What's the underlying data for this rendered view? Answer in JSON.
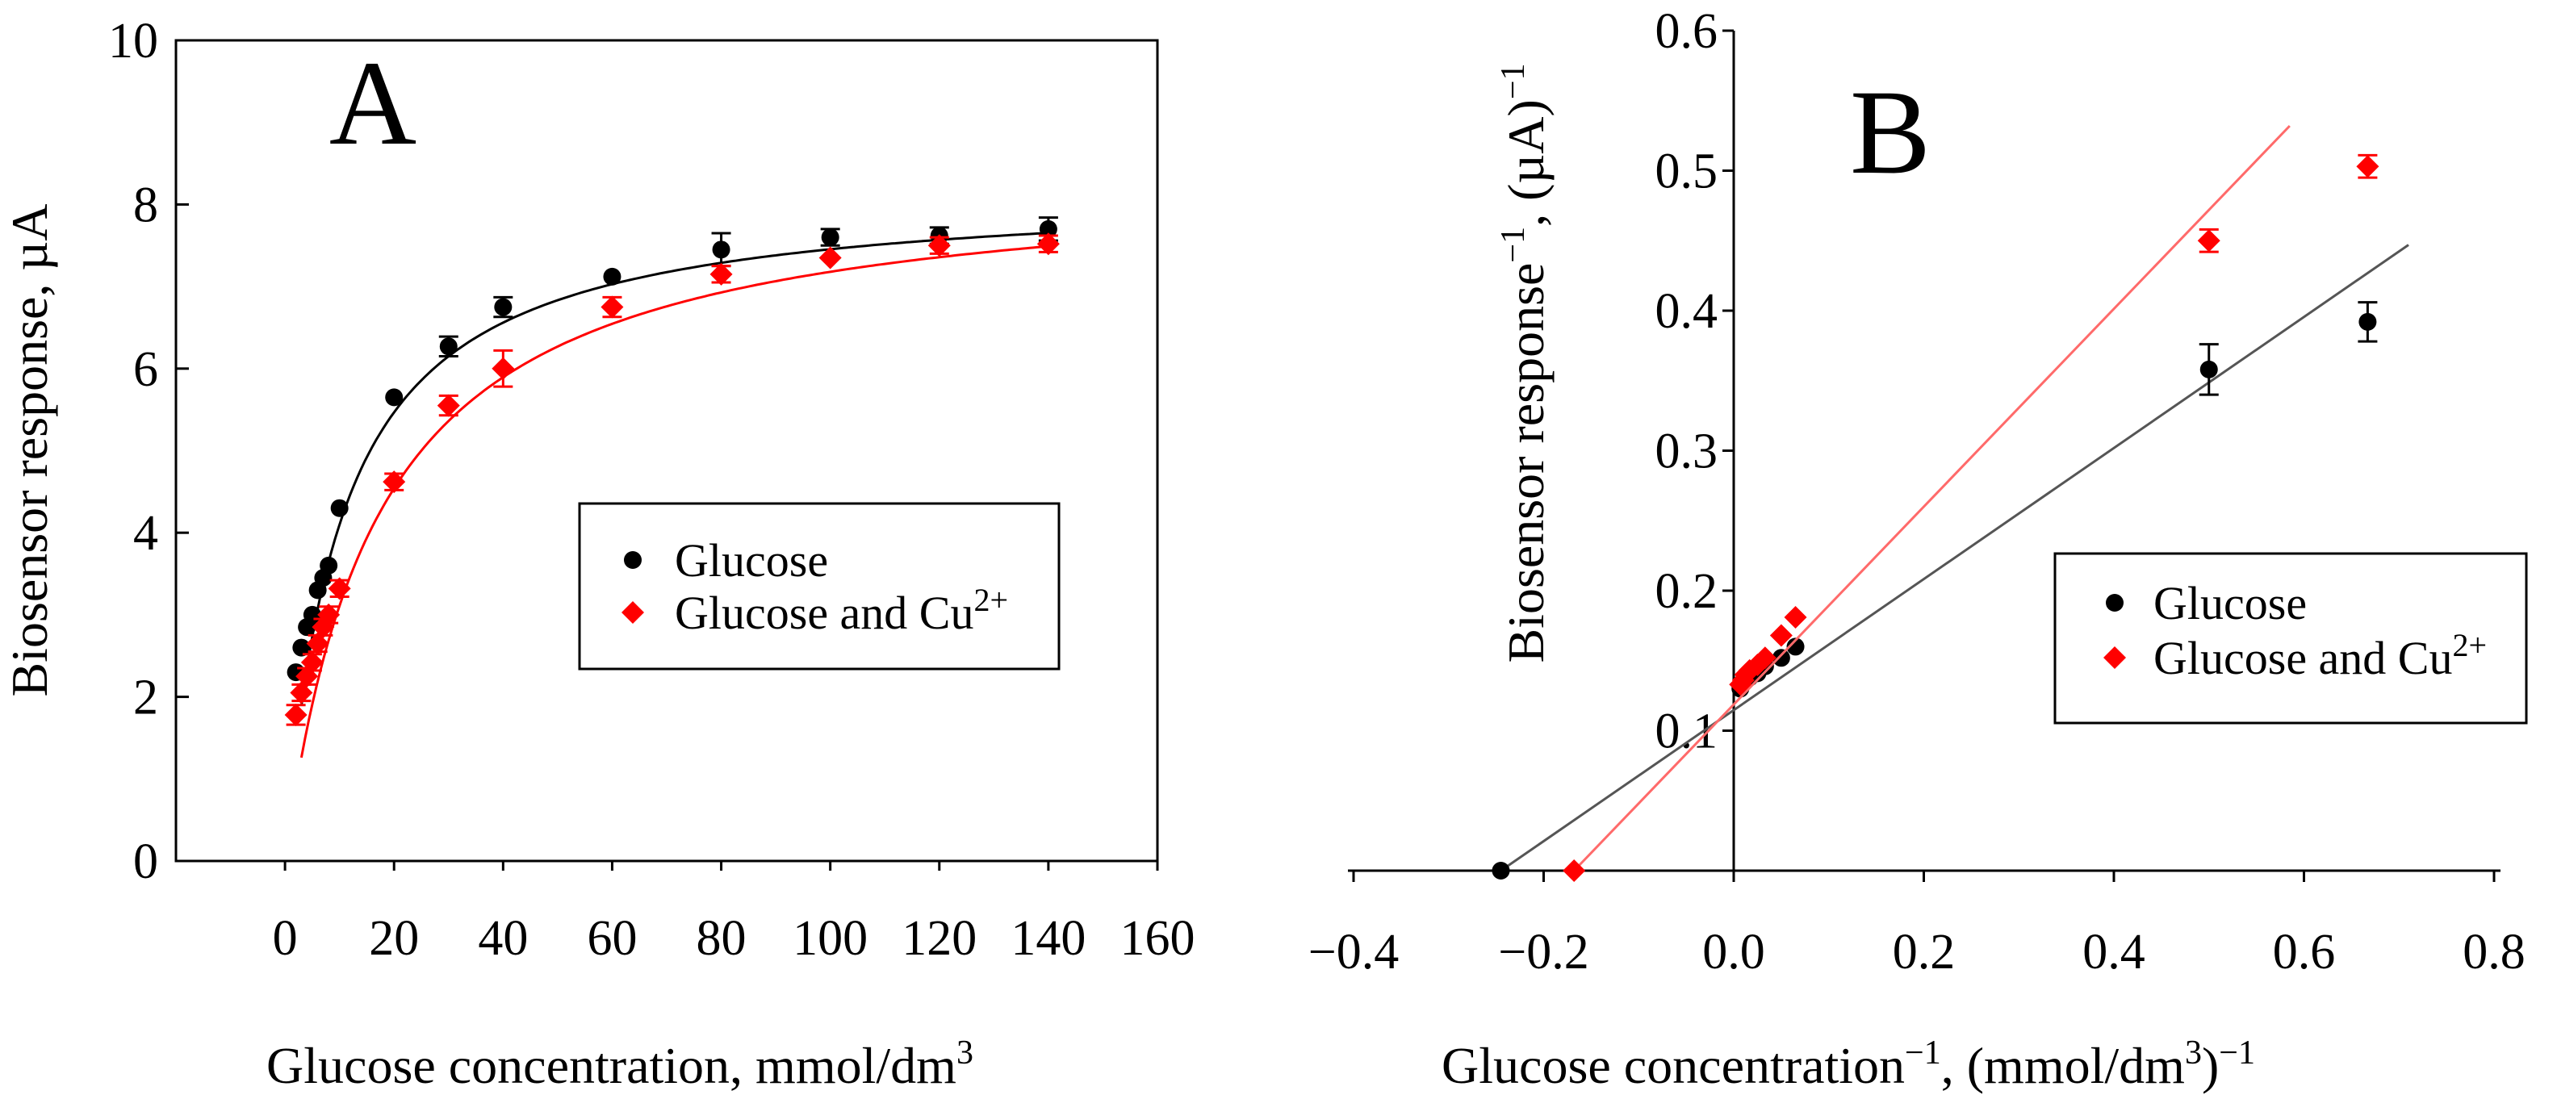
{
  "chart_data": [
    {
      "panel_label": "A",
      "type": "scatter",
      "xlabel": "Glucose concentration, mmol/dm",
      "xlabel_sup": "3",
      "ylabel": "Biosensor response, µA",
      "xlim": [
        -20,
        160
      ],
      "ylim": [
        0,
        10
      ],
      "xticks": [
        0,
        20,
        40,
        60,
        80,
        100,
        120,
        140,
        160
      ],
      "xtick_labels": [
        "0",
        "20",
        "40",
        "60",
        "80",
        "100",
        "120",
        "140",
        "160"
      ],
      "yticks": [
        0,
        2,
        4,
        6,
        8,
        10
      ],
      "ytick_labels": [
        "0",
        "2",
        "4",
        "6",
        "8",
        "10"
      ],
      "legend": {
        "position": "center-right",
        "entries": [
          {
            "label": "Glucose",
            "sup": ""
          },
          {
            "label": "Glucose and Cu",
            "sup": "2+"
          }
        ]
      },
      "series": [
        {
          "name": "Glucose",
          "color": "#000000",
          "marker": "circle",
          "points": [
            {
              "x": 2,
              "y": 2.3,
              "err": 0.08
            },
            {
              "x": 3,
              "y": 2.6,
              "err": 0.08
            },
            {
              "x": 4,
              "y": 2.85,
              "err": 0.08
            },
            {
              "x": 5,
              "y": 3.0,
              "err": 0.08
            },
            {
              "x": 6,
              "y": 3.3,
              "err": 0.08
            },
            {
              "x": 7,
              "y": 3.45,
              "err": 0.08
            },
            {
              "x": 8,
              "y": 3.6,
              "err": 0.08
            },
            {
              "x": 10,
              "y": 4.3,
              "err": 0.08
            },
            {
              "x": 20,
              "y": 5.65,
              "err": 0.06
            },
            {
              "x": 30,
              "y": 6.27,
              "err": 0.12
            },
            {
              "x": 40,
              "y": 6.75,
              "err": 0.12
            },
            {
              "x": 60,
              "y": 7.12,
              "err": 0.08
            },
            {
              "x": 80,
              "y": 7.45,
              "err": 0.2
            },
            {
              "x": 100,
              "y": 7.6,
              "err": 0.1
            },
            {
              "x": 120,
              "y": 7.62,
              "err": 0.1
            },
            {
              "x": 140,
              "y": 7.7,
              "err": 0.14
            }
          ],
          "fit": {
            "vmax": 8.2,
            "km": 10.0,
            "x_from": 3,
            "x_to": 140
          }
        },
        {
          "name": "Glucose and Cu2+",
          "color": "#ff0000",
          "marker": "diamond",
          "points": [
            {
              "x": 2,
              "y": 1.78,
              "err": 0.12
            },
            {
              "x": 3,
              "y": 2.05,
              "err": 0.1
            },
            {
              "x": 4,
              "y": 2.25,
              "err": 0.1
            },
            {
              "x": 5,
              "y": 2.42,
              "err": 0.1
            },
            {
              "x": 6,
              "y": 2.65,
              "err": 0.1
            },
            {
              "x": 7,
              "y": 2.85,
              "err": 0.1
            },
            {
              "x": 8,
              "y": 3.0,
              "err": 0.1
            },
            {
              "x": 10,
              "y": 3.32,
              "err": 0.1
            },
            {
              "x": 20,
              "y": 4.62,
              "err": 0.1
            },
            {
              "x": 30,
              "y": 5.55,
              "err": 0.12
            },
            {
              "x": 40,
              "y": 6.0,
              "err": 0.22
            },
            {
              "x": 60,
              "y": 6.75,
              "err": 0.12
            },
            {
              "x": 80,
              "y": 7.15,
              "err": 0.1
            },
            {
              "x": 100,
              "y": 7.35,
              "err": 0.08
            },
            {
              "x": 120,
              "y": 7.5,
              "err": 0.1
            },
            {
              "x": 140,
              "y": 7.52,
              "err": 0.1
            }
          ],
          "fit": {
            "vmax": 8.4,
            "km": 17.0,
            "x_from": 3,
            "x_to": 140
          }
        }
      ]
    },
    {
      "panel_label": "B",
      "type": "scatter",
      "xlabel": "Glucose concentration",
      "xlabel_sup1": "−1",
      "xlabel_mid": ", (mmol/dm",
      "xlabel_sup2": "3",
      "xlabel_end": ")",
      "xlabel_sup3": "−1",
      "ylabel": "Biosensor response",
      "ylabel_sup1": "−1",
      "ylabel_end": ", (µA)",
      "ylabel_sup2": "−1",
      "xlim": [
        -0.43,
        0.8
      ],
      "ylim": [
        0,
        0.6
      ],
      "xticks": [
        -0.4,
        -0.2,
        0.0,
        0.2,
        0.4,
        0.6,
        0.8
      ],
      "xtick_labels": [
        "−0.4",
        "−0.2",
        "0.0",
        "0.2",
        "0.4",
        "0.6",
        "0.8"
      ],
      "yticks": [
        0.1,
        0.2,
        0.3,
        0.4,
        0.5,
        0.6
      ],
      "ytick_labels": [
        "0.1",
        "0.2",
        "0.3",
        "0.4",
        "0.5",
        "0.6"
      ],
      "legend": {
        "position": "lower-right",
        "entries": [
          {
            "label": "Glucose",
            "sup": ""
          },
          {
            "label": "Glucose and Cu",
            "sup": "2+"
          }
        ]
      },
      "series": [
        {
          "name": "Glucose",
          "color": "#000000",
          "marker": "circle",
          "points": [
            {
              "x": -0.245,
              "y": 0.0,
              "err": 0
            },
            {
              "x": 0.007,
              "y": 0.13,
              "err": 0
            },
            {
              "x": 0.008,
              "y": 0.132,
              "err": 0
            },
            {
              "x": 0.01,
              "y": 0.134,
              "err": 0
            },
            {
              "x": 0.0125,
              "y": 0.136,
              "err": 0
            },
            {
              "x": 0.0167,
              "y": 0.138,
              "err": 0
            },
            {
              "x": 0.025,
              "y": 0.141,
              "err": 0
            },
            {
              "x": 0.033,
              "y": 0.146,
              "err": 0
            },
            {
              "x": 0.05,
              "y": 0.152,
              "err": 0
            },
            {
              "x": 0.065,
              "y": 0.16,
              "err": 0
            },
            {
              "x": 0.5,
              "y": 0.358,
              "err": 0.018
            },
            {
              "x": 0.667,
              "y": 0.392,
              "err": 0.014
            }
          ],
          "line": {
            "x1": -0.245,
            "y1": 0.0,
            "x2": 0.71,
            "y2": 0.447
          }
        },
        {
          "name": "Glucose and Cu2+",
          "color": "#ff0000",
          "marker": "diamond",
          "points": [
            {
              "x": -0.168,
              "y": 0.0,
              "err": 0
            },
            {
              "x": 0.007,
              "y": 0.133,
              "err": 0
            },
            {
              "x": 0.01,
              "y": 0.136,
              "err": 0
            },
            {
              "x": 0.0125,
              "y": 0.14,
              "err": 0
            },
            {
              "x": 0.0167,
              "y": 0.143,
              "err": 0
            },
            {
              "x": 0.025,
              "y": 0.147,
              "err": 0
            },
            {
              "x": 0.033,
              "y": 0.152,
              "err": 0
            },
            {
              "x": 0.05,
              "y": 0.168,
              "err": 0
            },
            {
              "x": 0.065,
              "y": 0.181,
              "err": 0
            },
            {
              "x": 0.5,
              "y": 0.45,
              "err": 0.008
            },
            {
              "x": 0.667,
              "y": 0.503,
              "err": 0.008
            }
          ],
          "line": {
            "x1": -0.168,
            "y1": 0.0,
            "x2": 0.585,
            "y2": 0.532
          }
        }
      ]
    }
  ]
}
